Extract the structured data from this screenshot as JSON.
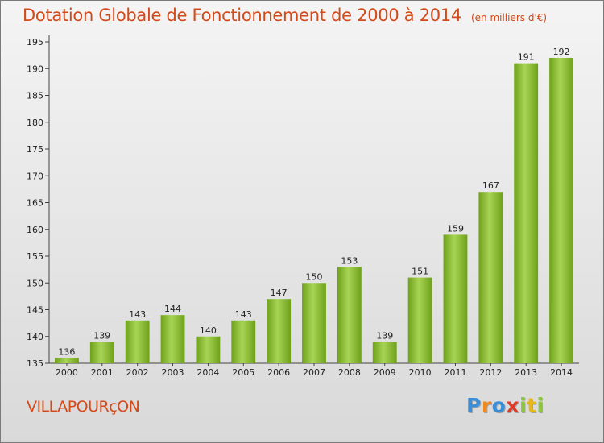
{
  "chart_data": {
    "type": "bar",
    "title": "Dotation Globale de Fonctionnement de 2000 à 2014",
    "subtitle": "(en milliers d'€)",
    "categories": [
      "2000",
      "2001",
      "2002",
      "2003",
      "2004",
      "2005",
      "2006",
      "2007",
      "2008",
      "2009",
      "2010",
      "2011",
      "2012",
      "2013",
      "2014"
    ],
    "values": [
      136,
      139,
      143,
      144,
      140,
      143,
      147,
      150,
      153,
      139,
      151,
      159,
      167,
      191,
      192
    ],
    "ylim": [
      135,
      195
    ],
    "yticks": [
      135,
      140,
      145,
      150,
      155,
      160,
      165,
      170,
      175,
      180,
      185,
      190,
      195
    ],
    "grid": false,
    "colors": {
      "bar_light": "#a8d455",
      "bar_dark": "#6ea11a",
      "title": "#d24a1a"
    }
  },
  "commune": "VILLAPOURçON",
  "logo": {
    "letters": [
      "P",
      "r",
      "o",
      "x",
      "i",
      "t",
      "i"
    ],
    "colors": [
      "#3a8fd8",
      "#f08a1c",
      "#3a8fd8",
      "#e03a2a",
      "#8cc63f",
      "#e8b81a",
      "#8cc63f"
    ]
  }
}
